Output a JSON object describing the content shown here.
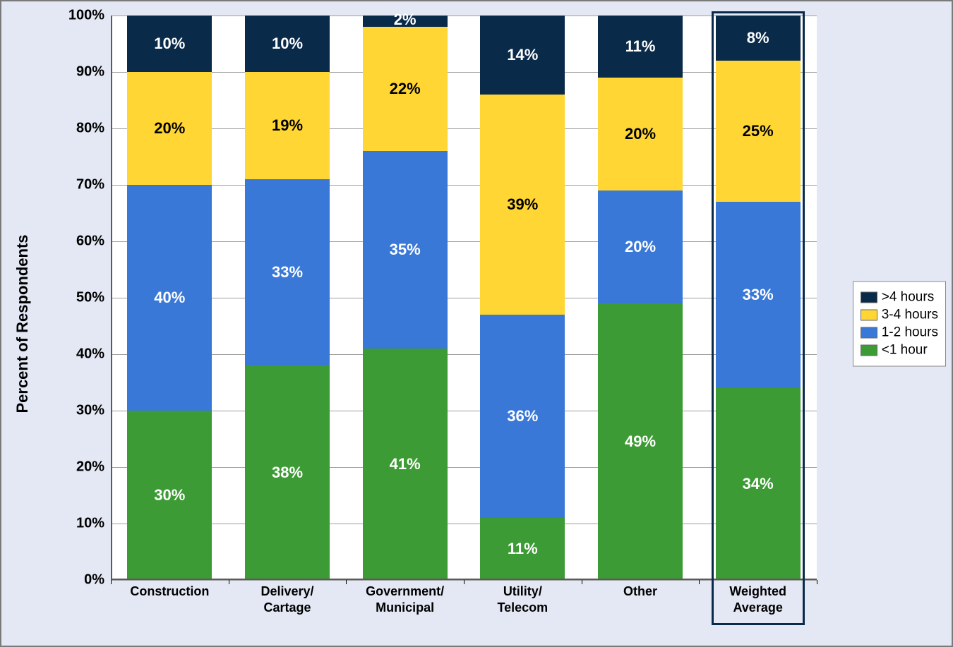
{
  "chart": {
    "type": "stacked-bar-100pct",
    "background_color": "#e3e8f4",
    "plot_background_color": "#ffffff",
    "grid_color": "#9e9e9e",
    "border_color": "#7a7a7a",
    "y_axis": {
      "label": "Percent of Respondents",
      "min": 0,
      "max": 100,
      "tick_step": 10,
      "tick_suffix": "%",
      "label_fontsize": 22,
      "tick_fontsize": 20
    },
    "categories": [
      {
        "key": "construction",
        "label_line1": "Construction",
        "label_line2": ""
      },
      {
        "key": "delivery",
        "label_line1": "Delivery/",
        "label_line2": "Cartage"
      },
      {
        "key": "government",
        "label_line1": "Government/",
        "label_line2": "Municipal"
      },
      {
        "key": "utility",
        "label_line1": "Utility/",
        "label_line2": "Telecom"
      },
      {
        "key": "other",
        "label_line1": "Other",
        "label_line2": ""
      },
      {
        "key": "weighted",
        "label_line1": "Weighted",
        "label_line2": "Average"
      }
    ],
    "x_tick_fontsize": 18,
    "series": [
      {
        "key": "lt1",
        "label": "<1 hour",
        "color": "#3d9b35",
        "text_color": "#ffffff"
      },
      {
        "key": "h12",
        "label": "1-2 hours",
        "color": "#3a78d8",
        "text_color": "#ffffff"
      },
      {
        "key": "h34",
        "label": "3-4 hours",
        "color": "#ffd633",
        "text_color": "#000000"
      },
      {
        "key": "gt4",
        "label": ">4 hours",
        "color": "#0a2a4a",
        "text_color": "#ffffff"
      }
    ],
    "data": {
      "construction": {
        "lt1": 30,
        "h12": 40,
        "h34": 20,
        "gt4": 10
      },
      "delivery": {
        "lt1": 38,
        "h12": 33,
        "h34": 19,
        "gt4": 10
      },
      "government": {
        "lt1": 41,
        "h12": 35,
        "h34": 22,
        "gt4": 2
      },
      "utility": {
        "lt1": 11,
        "h12": 36,
        "h34": 39,
        "gt4": 14
      },
      "other": {
        "lt1": 49,
        "h12": 20,
        "h34": 20,
        "gt4": 11
      },
      "weighted": {
        "lt1": 34,
        "h12": 33,
        "h34": 25,
        "gt4": 8
      }
    },
    "highlight_category": "weighted",
    "bar_width_ratio": 0.72,
    "data_label_fontsize": 22,
    "legend_fontsize": 19
  }
}
